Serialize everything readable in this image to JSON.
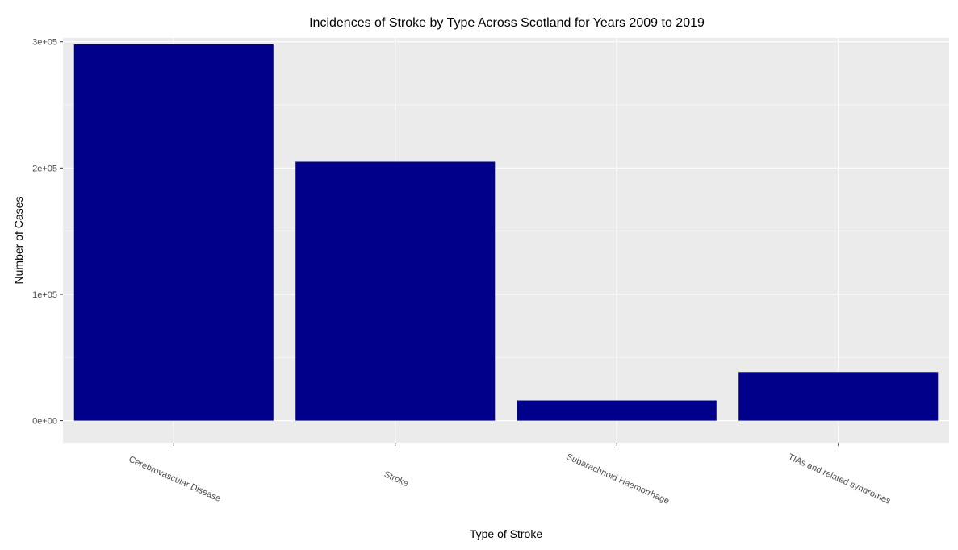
{
  "chart_data": {
    "type": "bar",
    "title": "Incidences of Stroke by Type Across Scotland for Years 2009 to 2019",
    "xlabel": "Type of Stroke",
    "ylabel": "Number of Cases",
    "categories": [
      "Cerebrovascular Disease",
      "Stroke",
      "Subarachnoid Haemorrhage",
      "TIAs and related syndromes"
    ],
    "values": [
      298000,
      205000,
      16000,
      38500
    ],
    "ylim": [
      -17500,
      303000
    ],
    "y_ticks": [
      0,
      100000,
      200000,
      300000
    ],
    "y_tick_labels": [
      "0e+00",
      "1e+05",
      "2e+05",
      "3e+05"
    ],
    "bar_color": "#00008B",
    "panel_background": "#EBEBEB",
    "grid_color": "#FFFFFF",
    "grid": true,
    "legend": "none"
  }
}
